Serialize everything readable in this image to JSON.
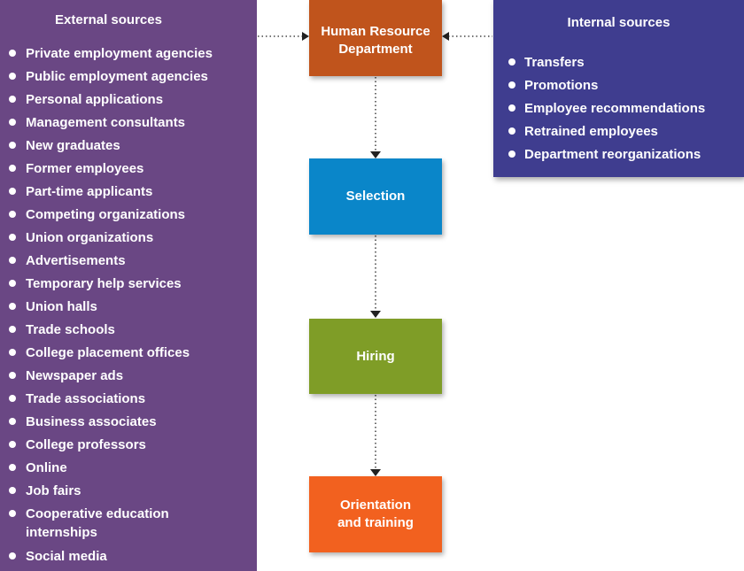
{
  "external": {
    "title": "External sources",
    "items": [
      "Private employment agencies",
      "Public employment agencies",
      "Personal applications",
      "Management consultants",
      "New graduates",
      "Former employees",
      "Part-time applicants",
      "Competing organizations",
      "Union organizations",
      "Advertisements",
      "Temporary help services",
      "Union halls",
      "Trade schools",
      "College placement offices",
      "Newspaper ads",
      "Trade associations",
      "Business associates",
      "College professors",
      "Online",
      "Job fairs",
      "Cooperative education internships",
      "Social media"
    ]
  },
  "internal": {
    "title": "Internal sources",
    "items": [
      "Transfers",
      "Promotions",
      "Employee recommendations",
      "Retrained employees",
      "Department reorganizations"
    ]
  },
  "flow": {
    "hr": "Human Resource Department",
    "selection": "Selection",
    "hiring": "Hiring",
    "orientation": "Orientation and training"
  },
  "colors": {
    "external_panel": "#6a4784",
    "internal_panel": "#3f3d8f",
    "hr_box": "#c0541c",
    "selection_box": "#0a86c9",
    "hiring_box": "#7f9d27",
    "orientation_box": "#f2611f"
  }
}
